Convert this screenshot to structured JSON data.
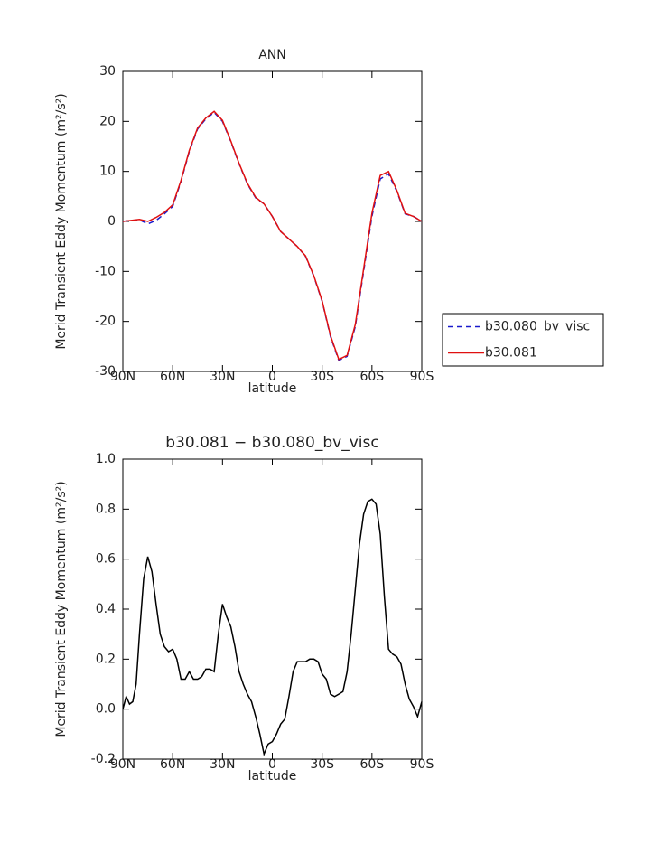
{
  "chart_data": [
    {
      "type": "line",
      "title": "ANN",
      "x_label": "latitude",
      "y_label": "Merid Transient Eddy Momentum (m²/s²)",
      "x": [
        90,
        85,
        80,
        75,
        70,
        65,
        60,
        55,
        50,
        45,
        40,
        35,
        30,
        25,
        20,
        15,
        10,
        5,
        0,
        -5,
        -10,
        -15,
        -20,
        -25,
        -30,
        -35,
        -40,
        -45,
        -50,
        -55,
        -60,
        -65,
        -70,
        -75,
        -80,
        -85,
        -90
      ],
      "series": [
        {
          "name": "b30.080_bv_visc",
          "color": "#1a1acc",
          "dashed": true,
          "values": [
            0,
            0.2,
            0.3,
            -0.5,
            0.2,
            1.5,
            3,
            8,
            14,
            18.5,
            20.5,
            21.8,
            20,
            16,
            11.5,
            7.5,
            4.7,
            3.5,
            1,
            -2,
            -3.5,
            -5,
            -7,
            -11,
            -16,
            -23,
            -27.8,
            -27,
            -21,
            -10,
            1,
            8.5,
            9.5,
            6,
            1.5,
            1,
            0
          ]
        },
        {
          "name": "b30.081",
          "color": "#e01010",
          "dashed": false,
          "values": [
            0,
            0.2,
            0.4,
            0,
            0.8,
            1.8,
            3.3,
            8.2,
            14.2,
            18.7,
            20.7,
            22,
            20.2,
            16.1,
            11.6,
            7.6,
            4.8,
            3.5,
            1,
            -2,
            -3.5,
            -5,
            -6.9,
            -10.9,
            -15.9,
            -22.8,
            -27.6,
            -26.8,
            -20.6,
            -9.5,
            1.6,
            9.2,
            10,
            6.2,
            1.6,
            1,
            0
          ]
        }
      ],
      "xlim": [
        90,
        -90
      ],
      "xticks": [
        {
          "value": 90,
          "label": "90N"
        },
        {
          "value": 60,
          "label": "60N"
        },
        {
          "value": 30,
          "label": "30N"
        },
        0,
        {
          "value": -30,
          "label": "30S"
        },
        {
          "value": -60,
          "label": "60S"
        },
        {
          "value": -90,
          "label": "90S"
        }
      ],
      "ylim": [
        -30,
        30
      ],
      "yticks": [
        -30,
        -20,
        -10,
        0,
        10,
        20,
        30
      ],
      "legend": "right"
    },
    {
      "type": "line",
      "title": "b30.081 − b30.080_bv_visc",
      "x_label": "latitude",
      "y_label": "Merid Transient Eddy Momentum (m²/s²)",
      "x": [
        90,
        88,
        86,
        84,
        82,
        80,
        77.5,
        75,
        72.5,
        70,
        67.5,
        65,
        62.5,
        60,
        57.5,
        55,
        52.5,
        50,
        47.5,
        45,
        42.5,
        40,
        37.5,
        35,
        32.5,
        30,
        27.5,
        25,
        22.5,
        20,
        17.5,
        15,
        12.5,
        10,
        7.5,
        5,
        2.5,
        0,
        -2.5,
        -5,
        -7.5,
        -10,
        -12.5,
        -15,
        -17.5,
        -20,
        -22.5,
        -25,
        -27.5,
        -30,
        -32.5,
        -35,
        -37.5,
        -40,
        -42.5,
        -45,
        -47.5,
        -50,
        -52.5,
        -55,
        -57.5,
        -60,
        -62.5,
        -65,
        -67.5,
        -70,
        -72.5,
        -75,
        -77.5,
        -80,
        -82.5,
        -85,
        -87.5,
        -90
      ],
      "values": [
        0,
        0.05,
        0.02,
        0.03,
        0.1,
        0.3,
        0.52,
        0.61,
        0.55,
        0.42,
        0.3,
        0.25,
        0.23,
        0.24,
        0.2,
        0.12,
        0.12,
        0.15,
        0.12,
        0.12,
        0.13,
        0.16,
        0.16,
        0.15,
        0.3,
        0.42,
        0.37,
        0.33,
        0.25,
        0.15,
        0.1,
        0.06,
        0.03,
        -0.03,
        -0.1,
        -0.18,
        -0.14,
        -0.13,
        -0.1,
        -0.06,
        -0.04,
        0.05,
        0.15,
        0.19,
        0.19,
        0.19,
        0.2,
        0.2,
        0.19,
        0.14,
        0.12,
        0.06,
        0.05,
        0.06,
        0.07,
        0.15,
        0.3,
        0.48,
        0.66,
        0.78,
        0.83,
        0.84,
        0.82,
        0.7,
        0.45,
        0.24,
        0.22,
        0.21,
        0.18,
        0.1,
        0.04,
        0.01,
        -0.03,
        0.03
      ],
      "color": "#000000",
      "xlim": [
        90,
        -90
      ],
      "xticks": [
        {
          "value": 90,
          "label": "90N"
        },
        {
          "value": 60,
          "label": "60N"
        },
        {
          "value": 30,
          "label": "30N"
        },
        0,
        {
          "value": -30,
          "label": "30S"
        },
        {
          "value": -60,
          "label": "60S"
        },
        {
          "value": -90,
          "label": "90S"
        }
      ],
      "ylim": [
        -0.2,
        1
      ],
      "yticks": [
        -0.2,
        {
          "value": 0,
          "label": "0.0"
        },
        0.2,
        0.4,
        0.6,
        0.8,
        {
          "value": 1,
          "label": "1.0"
        }
      ]
    }
  ]
}
